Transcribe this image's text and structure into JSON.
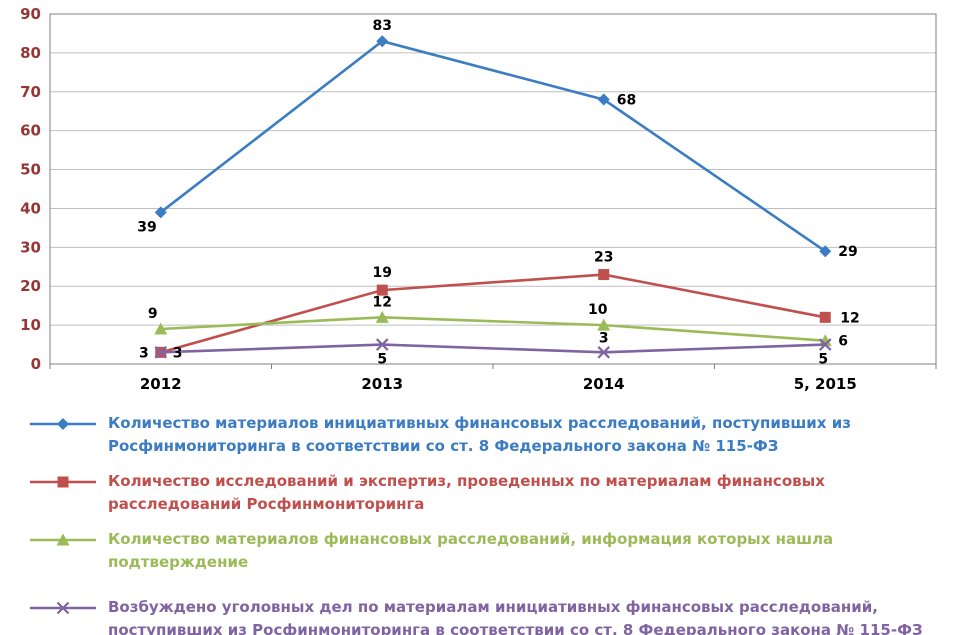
{
  "chart_data": {
    "type": "line",
    "title": "",
    "xlabel": "",
    "ylabel": "",
    "categories": [
      "2012",
      "2013",
      "2014",
      "5, 2015"
    ],
    "series": [
      {
        "name": "Количество материалов инициативных финансовых расследований, поступивших из Росфинмониторинга в соответствии со ст. 8 Федерального закона № 115-ФЗ",
        "values": [
          39,
          83,
          68,
          29
        ],
        "color": "#3B7CC3",
        "marker": "diamond"
      },
      {
        "name": "Количество исследований и экспертиз, проведенных по материалам финансовых расследований Росфинмониторинга",
        "values": [
          3,
          19,
          23,
          12
        ],
        "color": "#C0504D",
        "marker": "square"
      },
      {
        "name": "Количество материалов финансовых расследований, информация которых нашла подтверждение",
        "values": [
          9,
          12,
          10,
          6
        ],
        "color": "#9BBB59",
        "marker": "triangle"
      },
      {
        "name": "Возбуждено уголовных дел по материалам инициативных финансовых расследований, поступивших из Росфинмониторинга в соответствии со ст. 8 Федерального закона № 115-ФЗ",
        "values": [
          3,
          5,
          3,
          5
        ],
        "color": "#8064A2",
        "marker": "x"
      }
    ],
    "ylim": [
      0,
      90
    ],
    "ytick_step": 10,
    "grid": true,
    "legend_position": "bottom",
    "axis_colors": {
      "y_tick_labels": "#943634",
      "x_tick_labels": "#000000",
      "grid": "#BFBFBF",
      "frame": "#808080"
    },
    "data_label_color": "#000000"
  }
}
